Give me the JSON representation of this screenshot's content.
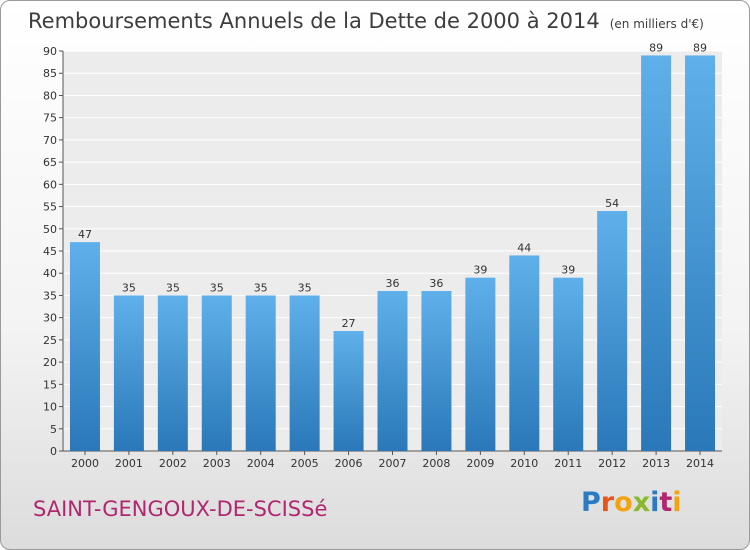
{
  "header": {
    "title": "Remboursements Annuels de la Dette de 2000 à 2014",
    "subtitle": "(en milliers d'€)"
  },
  "footer": {
    "commune": "SAINT-GENGOUX-DE-SCISSé",
    "logo_letters": [
      "P",
      "r",
      "o",
      "x",
      "i",
      "t",
      "i"
    ],
    "logo_colors": [
      "#2b7bc4",
      "#e8551b",
      "#f2a30f",
      "#8ab92d",
      "#2b7bc4",
      "#b0276f",
      "#f2a30f"
    ]
  },
  "chart_data": {
    "type": "bar",
    "title": "Remboursements Annuels de la Dette de 2000 à 2014",
    "subtitle": "(en milliers d'€)",
    "categories": [
      "2000",
      "2001",
      "2002",
      "2003",
      "2004",
      "2005",
      "2006",
      "2007",
      "2008",
      "2009",
      "2010",
      "2011",
      "2012",
      "2013",
      "2014"
    ],
    "values": [
      47,
      35,
      35,
      35,
      35,
      35,
      27,
      36,
      36,
      39,
      44,
      39,
      54,
      89,
      89
    ],
    "ylim": [
      0,
      90
    ],
    "yticks": [
      0,
      5,
      10,
      15,
      20,
      25,
      30,
      35,
      40,
      45,
      50,
      55,
      60,
      65,
      70,
      75,
      80,
      85,
      90
    ],
    "grid": true,
    "bar_color": "#3b8fd6",
    "xlabel": "",
    "ylabel": ""
  }
}
